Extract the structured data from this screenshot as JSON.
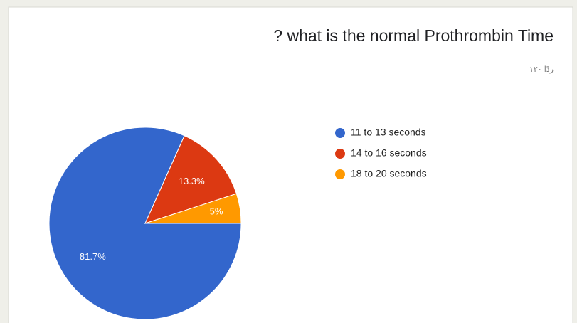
{
  "chart_data": {
    "type": "pie",
    "title": "? what is the normal Prothrombin Time",
    "subtitle": "۱۲۰ ردًا",
    "categories": [
      "11 to 13 seconds",
      "14 to 16 seconds",
      "18 to 20 seconds"
    ],
    "values": [
      81.7,
      13.3,
      5
    ],
    "value_labels": [
      "81.7%",
      "13.3%",
      "5%"
    ],
    "colors": [
      "#3366cc",
      "#dc3912",
      "#ff9900"
    ],
    "legend": "right"
  }
}
